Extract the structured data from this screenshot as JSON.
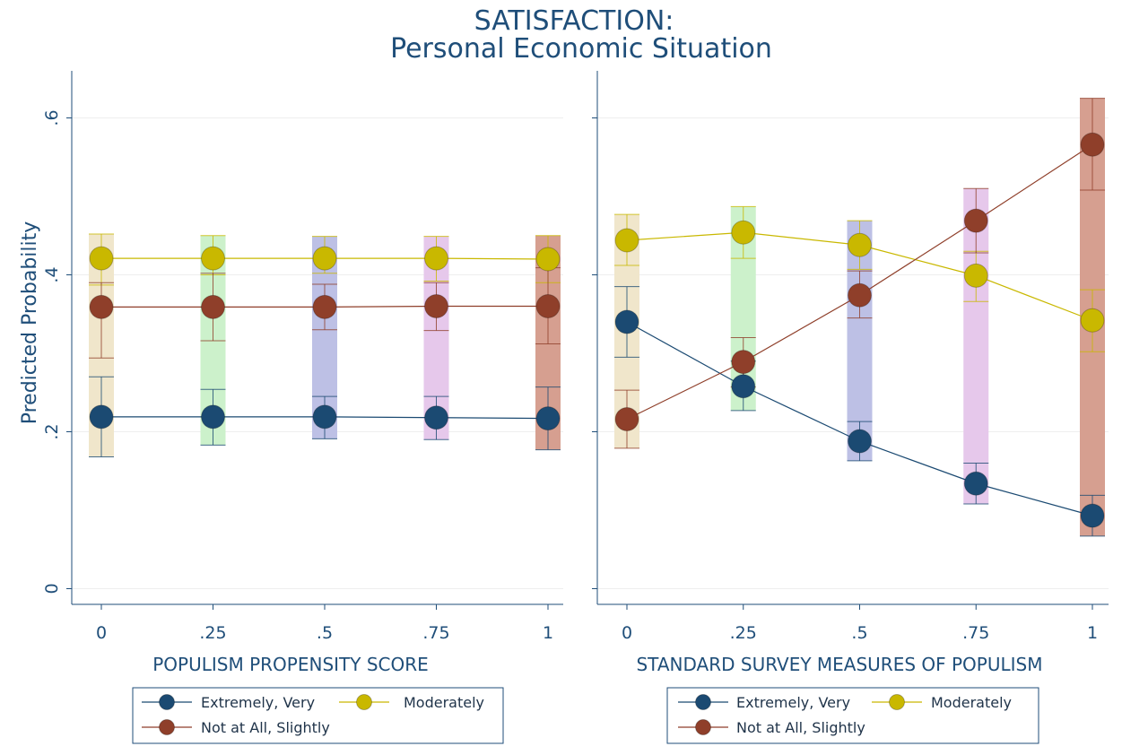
{
  "title": "SATISFACTION:",
  "subtitle": "Personal Economic Situation",
  "ylabel": "Predicted Probability",
  "colors": {
    "extremely": "#1b4a72",
    "moderately": "#c9b800",
    "not_at_all": "#8f3f2a",
    "axis": "#1f4e79",
    "band_0": "#efe5c8",
    "band_25": "#c9f0c8",
    "band_5": "#b9bde4",
    "band_75": "#e5c5ea",
    "band_1": "#d49a8a"
  },
  "chart_data": [
    {
      "type": "scatter",
      "xlabel": "POPULISM PROPENSITY SCORE",
      "x": [
        0,
        0.25,
        0.5,
        0.75,
        1
      ],
      "x_tick_labels": [
        "0",
        ".25",
        ".5",
        ".75",
        "1"
      ],
      "y_tick_labels": [
        "0",
        ".2",
        ".4",
        ".6"
      ],
      "y_ticks": [
        0,
        0.2,
        0.4,
        0.6
      ],
      "ylim": [
        -0.02,
        0.66
      ],
      "series": [
        {
          "name": "Extremely, Very",
          "key": "extremely",
          "values": [
            0.219,
            0.219,
            0.219,
            0.218,
            0.217
          ],
          "ci_low": [
            0.168,
            0.183,
            0.191,
            0.19,
            0.177
          ],
          "ci_high": [
            0.27,
            0.254,
            0.245,
            0.245,
            0.257
          ]
        },
        {
          "name": "Moderately",
          "key": "moderately",
          "values": [
            0.421,
            0.421,
            0.421,
            0.421,
            0.42
          ],
          "ci_low": [
            0.387,
            0.4,
            0.402,
            0.392,
            0.39
          ],
          "ci_high": [
            0.452,
            0.45,
            0.449,
            0.449,
            0.45
          ]
        },
        {
          "name": "Not at All, Slightly",
          "key": "not_at_all",
          "values": [
            0.359,
            0.359,
            0.359,
            0.36,
            0.36
          ],
          "ci_low": [
            0.294,
            0.316,
            0.33,
            0.329,
            0.312
          ],
          "ci_high": [
            0.39,
            0.402,
            0.388,
            0.39,
            0.409
          ]
        }
      ],
      "legend": [
        {
          "label": "Extremely, Very",
          "key": "extremely"
        },
        {
          "label": "Moderately",
          "key": "moderately"
        },
        {
          "label": "Not at All, Slightly",
          "key": "not_at_all"
        }
      ]
    },
    {
      "type": "scatter",
      "xlabel": "STANDARD SURVEY MEASURES OF POPULISM",
      "x": [
        0,
        0.25,
        0.5,
        0.75,
        1
      ],
      "x_tick_labels": [
        "0",
        ".25",
        ".5",
        ".75",
        "1"
      ],
      "y_ticks": [
        0,
        0.2,
        0.4,
        0.6
      ],
      "ylim": [
        -0.02,
        0.66
      ],
      "series": [
        {
          "name": "Extremely, Very",
          "key": "extremely",
          "values": [
            0.34,
            0.258,
            0.188,
            0.134,
            0.093
          ],
          "ci_low": [
            0.295,
            0.227,
            0.163,
            0.108,
            0.067
          ],
          "ci_high": [
            0.385,
            0.29,
            0.213,
            0.16,
            0.119
          ]
        },
        {
          "name": "Moderately",
          "key": "moderately",
          "values": [
            0.444,
            0.454,
            0.438,
            0.399,
            0.342
          ],
          "ci_low": [
            0.412,
            0.421,
            0.407,
            0.366,
            0.302
          ],
          "ci_high": [
            0.477,
            0.487,
            0.469,
            0.43,
            0.381
          ]
        },
        {
          "name": "Not at All, Slightly",
          "key": "not_at_all",
          "values": [
            0.216,
            0.289,
            0.374,
            0.469,
            0.566
          ],
          "ci_low": [
            0.179,
            0.257,
            0.345,
            0.428,
            0.508
          ],
          "ci_high": [
            0.253,
            0.32,
            0.405,
            0.51,
            0.625
          ]
        }
      ],
      "legend": [
        {
          "label": "Extremely, Very",
          "key": "extremely"
        },
        {
          "label": "Moderately",
          "key": "moderately"
        },
        {
          "label": "Not at All, Slightly",
          "key": "not_at_all"
        }
      ]
    }
  ]
}
